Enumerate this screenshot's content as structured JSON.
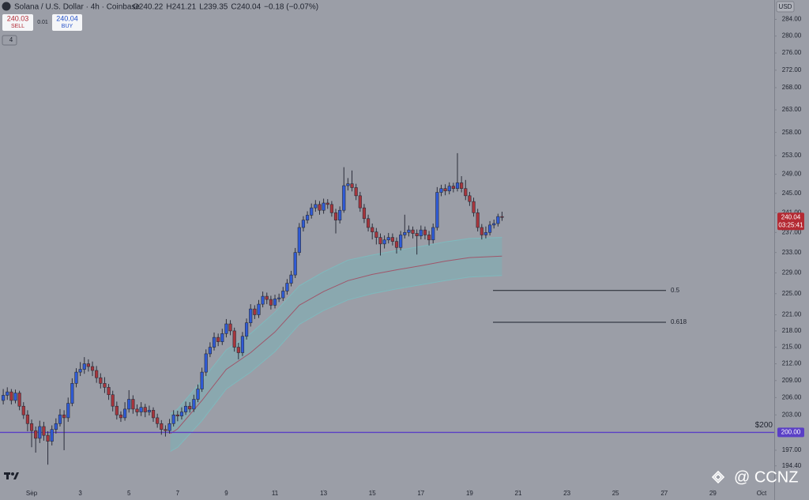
{
  "chart_data": {
    "type": "candlestick",
    "title": "Solana / U.S. Dollar · 4h · Coinbase",
    "ohlc_labels": [
      "O240.22",
      "H241.21",
      "L239.35",
      "C240.04",
      "−0.18 (−0.07%)"
    ],
    "currency": "USD",
    "log_scale": true,
    "ylim": [
      190.5,
      288.7
    ],
    "yticks": [
      {
        "value": 284,
        "label": "284.00"
      },
      {
        "value": 280,
        "label": "280.00"
      },
      {
        "value": 276,
        "label": "276.00"
      },
      {
        "value": 272,
        "label": "272.00"
      },
      {
        "value": 268,
        "label": "268.00"
      },
      {
        "value": 263,
        "label": "263.00"
      },
      {
        "value": 258,
        "label": "258.00"
      },
      {
        "value": 253,
        "label": "253.00"
      },
      {
        "value": 249,
        "label": "249.00"
      },
      {
        "value": 245,
        "label": "245.00"
      },
      {
        "value": 241,
        "label": "241.00"
      },
      {
        "value": 237,
        "label": "237.00"
      },
      {
        "value": 233,
        "label": "233.00"
      },
      {
        "value": 229,
        "label": "229.00"
      },
      {
        "value": 225,
        "label": "225.00"
      },
      {
        "value": 221,
        "label": "221.00"
      },
      {
        "value": 218,
        "label": "218.00"
      },
      {
        "value": 215,
        "label": "215.00"
      },
      {
        "value": 212,
        "label": "212.00"
      },
      {
        "value": 209,
        "label": "209.00"
      },
      {
        "value": 206,
        "label": "206.00"
      },
      {
        "value": 203,
        "label": "203.00"
      },
      {
        "value": 197,
        "label": "197.00"
      },
      {
        "value": 194.4,
        "label": "194.40"
      }
    ],
    "xlim": [
      -0.3,
      31.52
    ],
    "xticks": [
      {
        "value": 1,
        "label": "Sep"
      },
      3,
      5,
      7,
      9,
      11,
      13,
      15,
      17,
      19,
      21,
      23,
      25,
      27,
      29,
      {
        "value": 31,
        "label": "Oct"
      }
    ],
    "up_color": "#2f5bd6",
    "down_color": "#a8363c",
    "candles": [
      [
        205.5,
        207.5,
        204.8,
        206.4
      ],
      [
        206.4,
        207.8,
        205.6,
        207
      ],
      [
        207,
        207.5,
        204.8,
        205.5
      ],
      [
        205.5,
        207.4,
        205,
        206.8
      ],
      [
        206.8,
        207.2,
        203.8,
        204.5
      ],
      [
        204.5,
        205.2,
        202.3,
        203
      ],
      [
        203,
        203.8,
        200.2,
        201.5
      ],
      [
        201.5,
        202.2,
        197.5,
        200.3
      ],
      [
        200.3,
        201,
        196.6,
        199
      ],
      [
        199,
        202,
        198.2,
        201
      ],
      [
        201,
        201.8,
        198.6,
        199.5
      ],
      [
        199.5,
        200.2,
        194.6,
        198.5
      ],
      [
        198.5,
        201.2,
        197.8,
        200.5
      ],
      [
        200.5,
        202.4,
        199.8,
        201.5
      ],
      [
        201.5,
        204,
        201,
        203
      ],
      [
        203,
        203.8,
        197,
        202.5
      ],
      [
        202.5,
        206,
        201.8,
        205
      ],
      [
        205,
        209.4,
        204.5,
        208.5
      ],
      [
        208.5,
        211.2,
        207.8,
        210.5
      ],
      [
        210.5,
        212.3,
        209.8,
        211
      ],
      [
        211,
        213.2,
        210.2,
        212
      ],
      [
        212,
        212.8,
        210.6,
        211.5
      ],
      [
        211.5,
        212.4,
        209.8,
        210.8
      ],
      [
        210.8,
        211.6,
        208.6,
        209.5
      ],
      [
        209.5,
        210.3,
        207.6,
        208.5
      ],
      [
        208.5,
        209.6,
        206.8,
        207.8
      ],
      [
        207.8,
        208.4,
        205.6,
        206.5
      ],
      [
        206.5,
        207.2,
        203.6,
        204.5
      ],
      [
        204.5,
        205.3,
        202.2,
        203
      ],
      [
        203,
        203.6,
        201.8,
        202.5
      ],
      [
        202.5,
        205.2,
        202,
        204
      ],
      [
        204,
        207.3,
        203.4,
        205.7
      ],
      [
        205.7,
        206.4,
        203.2,
        204
      ],
      [
        204,
        204.8,
        202.8,
        203.5
      ],
      [
        203.5,
        205.2,
        202.8,
        204.3
      ],
      [
        204.3,
        204.9,
        202.6,
        203.5
      ],
      [
        203.5,
        204.6,
        202.9,
        203.8
      ],
      [
        203.8,
        204.3,
        201.8,
        202.5
      ],
      [
        202.5,
        203.2,
        200.8,
        201.5
      ],
      [
        201.5,
        202.1,
        199.6,
        200.5
      ],
      [
        200.5,
        201.2,
        199.3,
        200.3
      ],
      [
        200.3,
        202.3,
        199.8,
        201.5
      ],
      [
        201.5,
        203.8,
        201,
        203
      ],
      [
        203,
        203.7,
        201.9,
        202.8
      ],
      [
        202.8,
        204.3,
        202.2,
        203.5
      ],
      [
        203.5,
        205.3,
        203,
        204.5
      ],
      [
        204.5,
        205.2,
        203.4,
        204
      ],
      [
        204,
        206.5,
        203.5,
        205.7
      ],
      [
        205.7,
        208.3,
        205.2,
        207.5
      ],
      [
        207.5,
        211.3,
        207,
        210.5
      ],
      [
        210.5,
        214.6,
        209.8,
        213.8
      ],
      [
        213.8,
        215.9,
        213.2,
        215
      ],
      [
        215,
        217.7,
        214.4,
        216.8
      ],
      [
        216.8,
        217.5,
        215.2,
        216
      ],
      [
        216,
        218.4,
        215.4,
        217.5
      ],
      [
        217.5,
        220.2,
        216.8,
        219.3
      ],
      [
        219.3,
        220,
        217.2,
        218
      ],
      [
        218,
        218.6,
        214.2,
        215
      ],
      [
        215,
        215.8,
        212.8,
        214
      ],
      [
        214,
        217.8,
        213.4,
        217
      ],
      [
        217,
        220.3,
        216.4,
        219.5
      ],
      [
        219.5,
        223,
        218.8,
        222.1
      ],
      [
        222.1,
        222.8,
        220.2,
        221
      ],
      [
        221,
        223.8,
        220.4,
        223
      ],
      [
        223,
        225.4,
        222.4,
        224.5
      ],
      [
        224.5,
        225.2,
        223,
        223.9
      ],
      [
        223.9,
        224.6,
        222,
        222.8
      ],
      [
        222.8,
        224.8,
        222.2,
        224
      ],
      [
        224,
        225,
        223.4,
        224.2
      ],
      [
        224.2,
        226.3,
        223.6,
        225.5
      ],
      [
        225.5,
        227.8,
        224.8,
        227
      ],
      [
        227,
        229.4,
        226.4,
        228.6
      ],
      [
        228.6,
        233.9,
        228,
        233
      ],
      [
        233,
        238.9,
        232.4,
        238
      ],
      [
        238,
        240.3,
        237.2,
        239.5
      ],
      [
        239.5,
        241.3,
        238.8,
        240.5
      ],
      [
        240.5,
        242.9,
        239.8,
        242
      ],
      [
        242,
        243.6,
        241.2,
        242.7
      ],
      [
        242.7,
        243.4,
        240.6,
        241.5
      ],
      [
        241.5,
        243.9,
        240.8,
        243
      ],
      [
        243,
        243.8,
        241.8,
        242.7
      ],
      [
        242.7,
        243.4,
        240.2,
        241
      ],
      [
        241,
        241.8,
        236.8,
        239.5
      ],
      [
        239.5,
        242.3,
        238.8,
        241.5
      ],
      [
        241.5,
        250.5,
        241,
        246.6
      ],
      [
        246.6,
        248.2,
        245.6,
        247
      ],
      [
        247,
        249.8,
        245.4,
        246.2
      ],
      [
        246.2,
        247,
        243.6,
        244.5
      ],
      [
        244.5,
        245.3,
        241.2,
        242
      ],
      [
        242,
        242.8,
        238.9,
        239.8
      ],
      [
        239.8,
        240.6,
        237.2,
        238
      ],
      [
        238,
        238.8,
        235.6,
        237.1
      ],
      [
        237.1,
        237.9,
        234.6,
        236
      ],
      [
        236,
        236.8,
        232.4,
        234.7
      ],
      [
        234.7,
        236.4,
        233.8,
        235.5
      ],
      [
        235.5,
        236.9,
        234.8,
        236
      ],
      [
        236,
        236.8,
        234.4,
        235.2
      ],
      [
        235.2,
        236,
        232.8,
        234
      ],
      [
        234,
        237.3,
        233.4,
        236.5
      ],
      [
        236.5,
        240.6,
        235.8,
        237
      ],
      [
        237,
        238.4,
        236.2,
        237.5
      ],
      [
        237.5,
        238.2,
        235.8,
        236.8
      ],
      [
        236.8,
        237.6,
        232.6,
        236.3
      ],
      [
        236.3,
        238.4,
        235.6,
        237.5
      ],
      [
        237.5,
        238.2,
        235.6,
        236.5
      ],
      [
        236.5,
        237.3,
        234.4,
        235.5
      ],
      [
        235.5,
        238.8,
        234.8,
        238
      ],
      [
        238,
        246.3,
        237.4,
        245.2
      ],
      [
        245.2,
        246.8,
        244.4,
        246
      ],
      [
        246,
        246.9,
        244.6,
        245.5
      ],
      [
        245.5,
        247.3,
        244.8,
        246.5
      ],
      [
        246.5,
        247.2,
        245.2,
        246
      ],
      [
        246,
        253.5,
        245.4,
        247.2
      ],
      [
        247.2,
        248.6,
        245.2,
        246
      ],
      [
        246,
        247.8,
        243.6,
        244.5
      ],
      [
        244.5,
        245.3,
        242.4,
        243.3
      ],
      [
        243.3,
        244.1,
        240.2,
        241
      ],
      [
        241,
        241.8,
        237.2,
        238
      ],
      [
        238,
        238.7,
        235.6,
        236.5
      ],
      [
        236.5,
        238.2,
        235.8,
        237
      ],
      [
        237,
        239.3,
        236.4,
        238.5
      ],
      [
        238.5,
        239.6,
        237.8,
        238.8
      ],
      [
        238.8,
        240.8,
        238.2,
        240.22
      ],
      [
        240.22,
        241.21,
        239.35,
        240.04
      ]
    ],
    "band": {
      "x": [
        6.7,
        7,
        8,
        9,
        10,
        11,
        12,
        13,
        14,
        15,
        16,
        17,
        18,
        19,
        20.33
      ],
      "upper": [
        203.2,
        204,
        209,
        214.5,
        217.5,
        221.5,
        226.5,
        229.2,
        231.5,
        232.5,
        233.4,
        234.2,
        235.1,
        235.8,
        236
      ],
      "middle": [
        199.8,
        200.6,
        205.5,
        211,
        214,
        217.8,
        222.8,
        225.4,
        227.5,
        228.7,
        229.6,
        230.4,
        231.3,
        232,
        232.3
      ],
      "lower": [
        196.8,
        197.5,
        202,
        207.5,
        210.5,
        214.2,
        219.2,
        221.8,
        223.8,
        225,
        225.9,
        226.7,
        227.5,
        228.2,
        228.5
      ]
    },
    "levels": [
      {
        "label": "0.5",
        "value": 225.6
      },
      {
        "label": "0.618",
        "value": 219.6
      }
    ],
    "hline": {
      "value": 200,
      "label": "$200",
      "axis_label": "200.00",
      "color": "#5a3fc6"
    },
    "last_price": {
      "value": 240.04,
      "label": "240.04",
      "countdown": "03:25:41"
    }
  },
  "ui": {
    "sell": {
      "price": "240.03",
      "label": "SELL"
    },
    "spread": "0.01",
    "buy": {
      "price": "240.04",
      "label": "BUY"
    },
    "indicators": "4",
    "watermark": "@ CCNZ"
  }
}
